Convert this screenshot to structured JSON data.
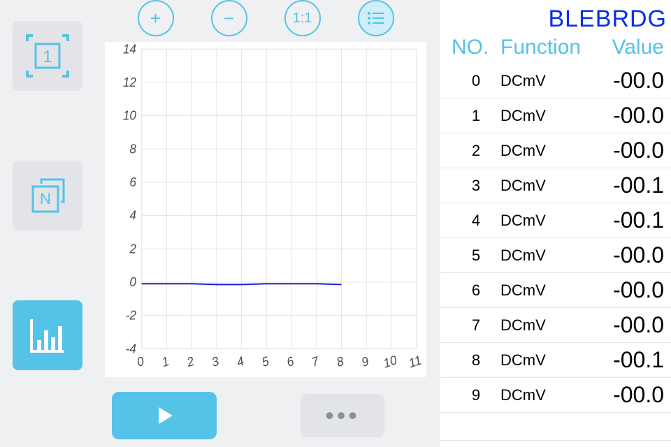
{
  "device_title": "BLEBRDG",
  "left_tools": {
    "tool1_label": "1",
    "toolN_label": "N"
  },
  "top_buttons": {
    "plus": "+",
    "minus": "−",
    "scale": "1:1"
  },
  "table": {
    "headers": {
      "no": "NO.",
      "fn": "Function",
      "val": "Value"
    },
    "rows": [
      {
        "no": "0",
        "fn": "DCmV",
        "val": "-00.0"
      },
      {
        "no": "1",
        "fn": "DCmV",
        "val": "-00.0"
      },
      {
        "no": "2",
        "fn": "DCmV",
        "val": "-00.0"
      },
      {
        "no": "3",
        "fn": "DCmV",
        "val": "-00.1"
      },
      {
        "no": "4",
        "fn": "DCmV",
        "val": "-00.1"
      },
      {
        "no": "5",
        "fn": "DCmV",
        "val": "-00.0"
      },
      {
        "no": "6",
        "fn": "DCmV",
        "val": "-00.0"
      },
      {
        "no": "7",
        "fn": "DCmV",
        "val": "-00.0"
      },
      {
        "no": "8",
        "fn": "DCmV",
        "val": "-00.1"
      },
      {
        "no": "9",
        "fn": "DCmV",
        "val": "-00.0"
      }
    ]
  },
  "chart": {
    "type": "line",
    "xlim": [
      0,
      11
    ],
    "ylim": [
      -4,
      14
    ],
    "ytick_step": 2,
    "xtick_step": 1,
    "background_color": "#ffffff",
    "grid_color": "#e5e5e5",
    "axis_color": "#bdbdbd",
    "line_color": "#1b1be0",
    "line_width": 2,
    "tick_font_size": 18,
    "tick_font_style": "italic",
    "tick_color": "#4a4a4a",
    "series_x": [
      0,
      1,
      2,
      3,
      4,
      5,
      6,
      7,
      8
    ],
    "series_y": [
      -0.1,
      -0.1,
      -0.1,
      -0.15,
      -0.15,
      -0.1,
      -0.1,
      -0.1,
      -0.15
    ]
  },
  "colors": {
    "accent": "#55c2e8",
    "accent_fill": "#cfeef8",
    "tile_bg": "#e2e4e7",
    "title_blue": "#0a2fe6"
  }
}
